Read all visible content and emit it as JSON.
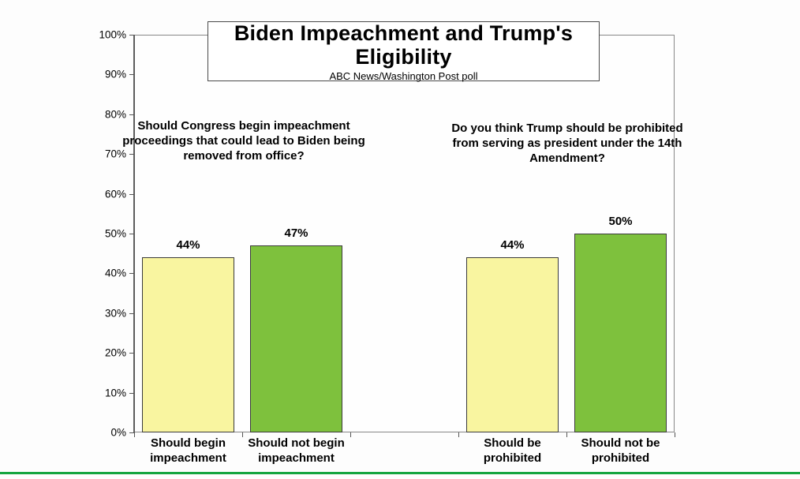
{
  "page": {
    "background_color": "#fdfdfd",
    "bottom_accent_color": "#14a53f"
  },
  "chart_data": {
    "type": "bar",
    "title": "Biden Impeachment and Trump's Eligibility",
    "subtitle": "ABC News/Washington Post poll",
    "xlabel": "",
    "ylabel": "",
    "ylim": [
      0,
      100
    ],
    "y_ticks": [
      "0%",
      "10%",
      "20%",
      "30%",
      "40%",
      "50%",
      "60%",
      "70%",
      "80%",
      "90%",
      "100%"
    ],
    "grid": false,
    "legend": false,
    "bar_fill_colors": {
      "yellow": "#f9f5a0",
      "green": "#7ec13d"
    },
    "groups": [
      {
        "question": "Should Congress begin impeachment proceedings that could lead to Biden being removed from office?",
        "bars": [
          {
            "label": "Should begin impeachment",
            "value": 44,
            "value_label": "44%",
            "color": "#f9f5a0"
          },
          {
            "label": "Should not begin impeachment",
            "value": 47,
            "value_label": "47%",
            "color": "#7ec13d"
          }
        ]
      },
      {
        "question": "Do you think Trump should be prohibited from serving as president under the 14th Amendment?",
        "bars": [
          {
            "label": "Should be prohibited",
            "value": 44,
            "value_label": "44%",
            "color": "#f9f5a0"
          },
          {
            "label": "Should not be prohibited",
            "value": 50,
            "value_label": "50%",
            "color": "#7ec13d"
          }
        ]
      }
    ]
  }
}
